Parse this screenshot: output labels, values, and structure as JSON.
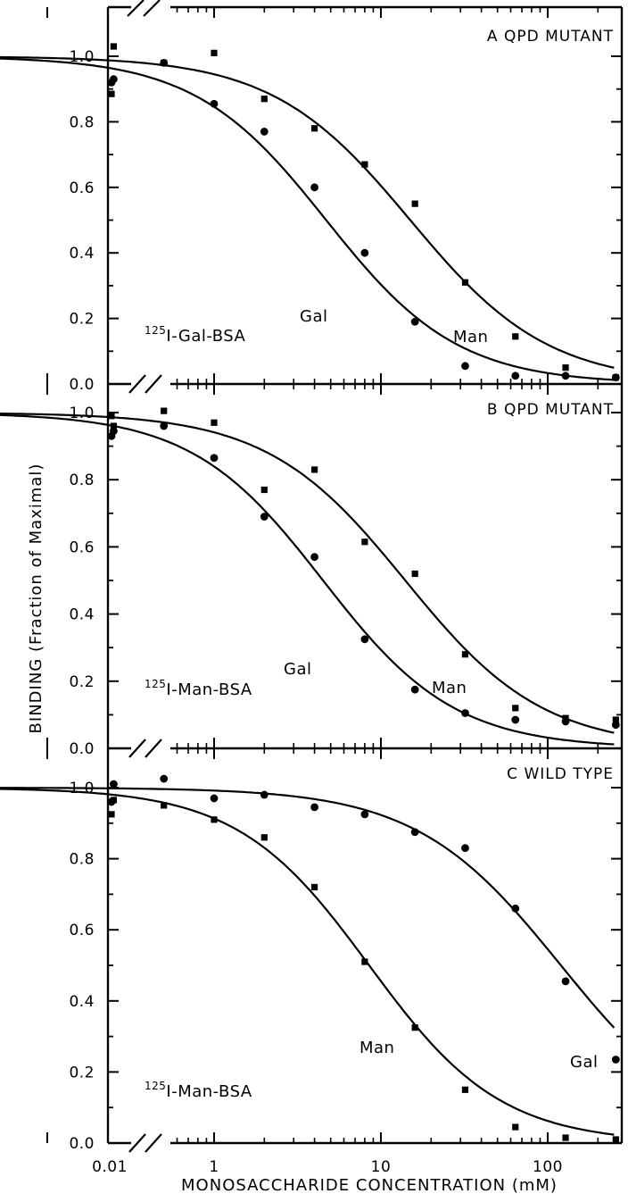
{
  "chart_data": {
    "type": "scatter",
    "xlabel": "MONOSACCHARIDE CONCENTRATION (mM)",
    "ylabel": "BINDING (Fraction of Maximal)",
    "xscale": "log",
    "x_axis_break": true,
    "xlim": [
      0.01,
      300
    ],
    "ylim": [
      0,
      1.05
    ],
    "x_tick_labels": [
      "0.01",
      "1",
      "10",
      "100"
    ],
    "y_tick_labels": [
      "0.0",
      "0.2",
      "0.4",
      "0.6",
      "0.8",
      "1.0"
    ],
    "grid": false,
    "legend": "none",
    "panels": [
      {
        "title": "A QPD MUTANT",
        "radioligand": {
          "sup": "125",
          "text": "I-Gal-BSA"
        },
        "series": [
          {
            "name": "Gal",
            "marker": "circle",
            "points": [
              [
                0.01,
                0.92
              ],
              [
                0.25,
                0.93
              ],
              [
                0.5,
                0.98
              ],
              [
                1,
                0.855
              ],
              [
                2,
                0.77
              ],
              [
                4,
                0.6
              ],
              [
                8,
                0.4
              ],
              [
                16,
                0.19
              ],
              [
                32,
                0.055
              ],
              [
                64,
                0.025
              ],
              [
                128,
                0.025
              ],
              [
                256,
                0.02
              ]
            ],
            "curve": {
              "ic50": 4.7,
              "hill": 1.1,
              "label": "Gal"
            }
          },
          {
            "name": "Man",
            "marker": "square",
            "points": [
              [
                0.01,
                0.885
              ],
              [
                0.25,
                1.03
              ],
              [
                0.5,
                0.98
              ],
              [
                1,
                1.01
              ],
              [
                2,
                0.87
              ],
              [
                4,
                0.78
              ],
              [
                8,
                0.67
              ],
              [
                16,
                0.55
              ],
              [
                32,
                0.31
              ],
              [
                64,
                0.145
              ],
              [
                128,
                0.05
              ],
              [
                256,
                0.02
              ]
            ],
            "curve": {
              "ic50": 15,
              "hill": 1.05,
              "label": "Man"
            }
          }
        ]
      },
      {
        "title": "B QPD MUTANT",
        "radioligand": {
          "sup": "125",
          "text": "I-Man-BSA"
        },
        "series": [
          {
            "name": "Gal",
            "marker": "circle",
            "points": [
              [
                0.01,
                0.93
              ],
              [
                0.25,
                0.945
              ],
              [
                0.5,
                0.96
              ],
              [
                1,
                0.865
              ],
              [
                2,
                0.69
              ],
              [
                4,
                0.57
              ],
              [
                8,
                0.325
              ],
              [
                16,
                0.175
              ],
              [
                32,
                0.105
              ],
              [
                64,
                0.085
              ],
              [
                128,
                0.08
              ],
              [
                256,
                0.07
              ]
            ],
            "curve": {
              "ic50": 4.5,
              "hill": 1.1,
              "label": "Gal"
            }
          },
          {
            "name": "Man",
            "marker": "square",
            "points": [
              [
                0.01,
                0.99
              ],
              [
                0.25,
                0.96
              ],
              [
                0.5,
                1.005
              ],
              [
                1,
                0.97
              ],
              [
                2,
                0.77
              ],
              [
                4,
                0.83
              ],
              [
                8,
                0.615
              ],
              [
                16,
                0.52
              ],
              [
                32,
                0.28
              ],
              [
                64,
                0.12
              ],
              [
                128,
                0.09
              ],
              [
                256,
                0.085
              ]
            ],
            "curve": {
              "ic50": 14,
              "hill": 1.05,
              "label": "Man"
            }
          }
        ]
      },
      {
        "title": "C WILD TYPE",
        "radioligand": {
          "sup": "125",
          "text": "I-Man-BSA"
        },
        "series": [
          {
            "name": "Gal",
            "marker": "circle",
            "points": [
              [
                0.01,
                0.96
              ],
              [
                0.25,
                1.01
              ],
              [
                0.5,
                1.025
              ],
              [
                1,
                0.97
              ],
              [
                2,
                0.98
              ],
              [
                4,
                0.945
              ],
              [
                8,
                0.925
              ],
              [
                16,
                0.875
              ],
              [
                32,
                0.83
              ],
              [
                64,
                0.66
              ],
              [
                128,
                0.455
              ],
              [
                256,
                0.235
              ]
            ],
            "curve": {
              "ic50": 120,
              "hill": 1.0,
              "label": "Gal"
            }
          },
          {
            "name": "Man",
            "marker": "square",
            "points": [
              [
                0.01,
                0.925
              ],
              [
                0.25,
                0.965
              ],
              [
                0.5,
                0.95
              ],
              [
                1,
                0.91
              ],
              [
                2,
                0.86
              ],
              [
                4,
                0.72
              ],
              [
                8,
                0.51
              ],
              [
                16,
                0.325
              ],
              [
                32,
                0.15
              ],
              [
                64,
                0.045
              ],
              [
                128,
                0.015
              ],
              [
                256,
                0.01
              ]
            ],
            "curve": {
              "ic50": 8.5,
              "hill": 1.1,
              "label": "Man"
            }
          }
        ]
      }
    ]
  }
}
